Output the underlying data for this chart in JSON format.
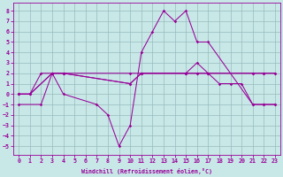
{
  "xlabel": "Windchill (Refroidissement éolien,°C)",
  "background_color": "#c8e8e8",
  "line_color": "#990099",
  "grid_color": "#99bbbb",
  "xlim": [
    -0.5,
    23.5
  ],
  "ylim": [
    -5.8,
    8.8
  ],
  "xticks": [
    0,
    1,
    2,
    3,
    4,
    5,
    6,
    7,
    8,
    9,
    10,
    11,
    12,
    13,
    14,
    15,
    16,
    17,
    18,
    19,
    20,
    21,
    22,
    23
  ],
  "yticks": [
    -5,
    -4,
    -3,
    -2,
    -1,
    0,
    1,
    2,
    3,
    4,
    5,
    6,
    7,
    8
  ],
  "lines": [
    {
      "x": [
        0,
        1,
        2,
        3,
        4,
        7,
        8,
        9,
        10,
        11,
        12,
        13,
        14,
        15,
        16,
        17,
        21,
        22,
        23
      ],
      "y": [
        0,
        0,
        2,
        2,
        0,
        -1,
        -2,
        -5,
        -3,
        4,
        6,
        8,
        7,
        8,
        5,
        5,
        -1,
        -1,
        -1
      ]
    },
    {
      "x": [
        0,
        1,
        3,
        4,
        10,
        11,
        15,
        16,
        17,
        18,
        19,
        20,
        21,
        22,
        23
      ],
      "y": [
        0,
        0,
        2,
        2,
        1,
        2,
        2,
        3,
        2,
        1,
        1,
        1,
        -1,
        -1,
        -1
      ]
    },
    {
      "x": [
        0,
        1,
        3,
        4,
        10,
        11,
        15,
        16,
        17,
        21,
        22,
        23
      ],
      "y": [
        0,
        0,
        2,
        2,
        2,
        2,
        2,
        2,
        2,
        2,
        2,
        2
      ]
    },
    {
      "x": [
        0,
        2,
        3,
        4,
        10,
        11,
        15,
        16,
        17,
        21,
        22,
        23
      ],
      "y": [
        -1,
        -1,
        2,
        2,
        1,
        2,
        2,
        2,
        2,
        2,
        2,
        2
      ]
    }
  ]
}
